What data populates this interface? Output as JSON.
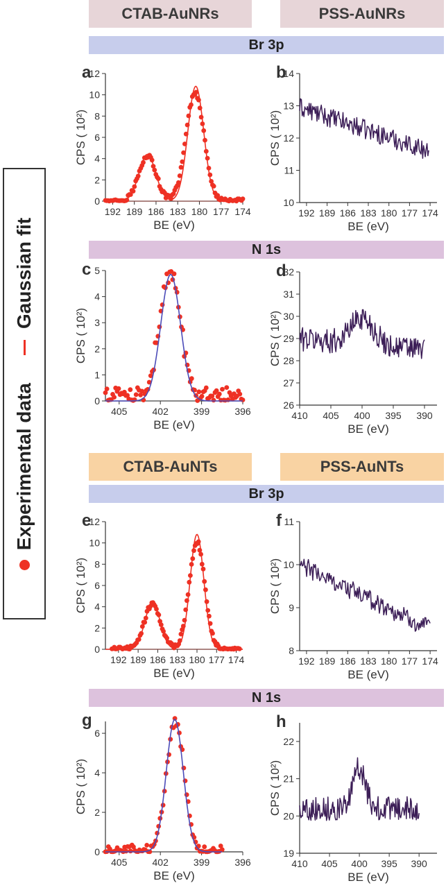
{
  "headers": {
    "ctab_aunrs": "CTAB-AuNRs",
    "pss_aunrs": "PSS-AuNRs",
    "br3p_1": "Br 3p",
    "n1s_1": "N 1s",
    "ctab_aunts": "CTAB-AuNTs",
    "pss_aunts": "PSS-AuNTs",
    "br3p_2": "Br 3p",
    "n1s_2": "N 1s"
  },
  "legend": {
    "experimental": "Experimental data",
    "fit": "Gaussian fit",
    "marker_color": "#ee3124",
    "fit_color": "#ee3124"
  },
  "colors": {
    "experimental": "#ee3124",
    "fit_red": "#ee3124",
    "fit_blue": "#4b4bb8",
    "spectrum": "#3c1e57",
    "baseline": "#8a5fa0",
    "axis": "#333333"
  },
  "chart_data": [
    {
      "id": "a",
      "panel_label": "a",
      "type": "scatter",
      "xlabel": "BE (eV)",
      "ylabel": "CPS ( 10²)",
      "xlim": [
        193,
        174
      ],
      "ylim": [
        0,
        12
      ],
      "xticks": [
        192,
        189,
        186,
        183,
        180,
        177,
        174
      ],
      "yticks": [
        0,
        2,
        4,
        6,
        8,
        10,
        12
      ],
      "series": [
        {
          "name": "Experimental data",
          "kind": "points",
          "model": [
            {
              "center": 187.2,
              "sigma": 1.2,
              "amp": 4.3
            },
            {
              "center": 180.6,
              "sigma": 1.25,
              "amp": 10.2
            }
          ],
          "x_range": [
            193,
            174
          ],
          "n": 110,
          "noise": 0.22,
          "baseline": 0.0
        },
        {
          "name": "Gaussian fit",
          "kind": "line",
          "color": "#ee3124",
          "model": [
            {
              "center": 187.2,
              "sigma": 1.15,
              "amp": 4.4
            },
            {
              "center": 180.5,
              "sigma": 1.1,
              "amp": 10.8
            }
          ],
          "x_range": [
            193,
            174
          ]
        }
      ]
    },
    {
      "id": "b",
      "panel_label": "b",
      "type": "line",
      "xlabel": "BE (eV)",
      "ylabel": "CPS ( 10²)",
      "xlim": [
        193,
        173
      ],
      "ylim": [
        10,
        14
      ],
      "xticks": [
        192,
        189,
        186,
        183,
        180,
        177,
        174
      ],
      "yticks": [
        10,
        11,
        12,
        13,
        14
      ],
      "series": [
        {
          "name": "Spectrum",
          "kind": "noisy",
          "color": "#3c1e57",
          "x_range": [
            193,
            174.2
          ],
          "n": 150,
          "trend": [
            12.95,
            11.6
          ],
          "noise": 0.3
        }
      ]
    },
    {
      "id": "c",
      "panel_label": "c",
      "type": "scatter",
      "xlabel": "BE (eV)",
      "ylabel": "CPS ( 10²)",
      "xlim": [
        406,
        396
      ],
      "ylim": [
        0,
        5
      ],
      "xticks": [
        405,
        402,
        399,
        396
      ],
      "yticks": [
        0,
        1,
        2,
        3,
        4,
        5
      ],
      "series": [
        {
          "name": "Experimental data",
          "kind": "points",
          "model": [
            {
              "center": 401.3,
              "sigma": 0.75,
              "amp": 4.8
            }
          ],
          "x_range": [
            406,
            396
          ],
          "n": 95,
          "noise": 0.3,
          "baseline": 0.15
        },
        {
          "name": "Gaussian fit",
          "kind": "line",
          "color": "#4b4bb8",
          "model": [
            {
              "center": 401.25,
              "sigma": 0.72,
              "amp": 4.85
            }
          ],
          "x_range": [
            406,
            396
          ]
        }
      ]
    },
    {
      "id": "d",
      "panel_label": "d",
      "type": "line",
      "xlabel": "BE (eV)",
      "ylabel": "CPS ( 10²)",
      "xlim": [
        410,
        388
      ],
      "ylim": [
        26,
        32
      ],
      "xticks": [
        410,
        405,
        400,
        395,
        390
      ],
      "yticks": [
        26,
        27,
        28,
        29,
        30,
        31,
        32
      ],
      "series": [
        {
          "name": "Spectrum",
          "kind": "noisy",
          "color": "#3c1e57",
          "x_range": [
            410,
            390
          ],
          "n": 170,
          "trend": [
            29.0,
            28.5
          ],
          "bump": {
            "center": 400,
            "sigma": 1.8,
            "amp": 1.2
          },
          "noise": 0.55
        }
      ]
    },
    {
      "id": "e",
      "panel_label": "e",
      "type": "scatter",
      "xlabel": "BE (eV)",
      "ylabel": "CPS ( 10²)",
      "xlim": [
        194,
        173
      ],
      "ylim": [
        0,
        12
      ],
      "xticks": [
        192,
        189,
        186,
        183,
        180,
        177,
        174
      ],
      "yticks": [
        0,
        2,
        4,
        6,
        8,
        10,
        12
      ],
      "series": [
        {
          "name": "Experimental data",
          "kind": "points",
          "model": [
            {
              "center": 186.8,
              "sigma": 1.25,
              "amp": 4.3
            },
            {
              "center": 180.0,
              "sigma": 1.2,
              "amp": 10.1
            }
          ],
          "x_range": [
            193,
            173.5
          ],
          "n": 110,
          "noise": 0.22,
          "baseline": 0.0
        },
        {
          "name": "Gaussian fit",
          "kind": "line",
          "color": "#ee3124",
          "model": [
            {
              "center": 186.8,
              "sigma": 1.15,
              "amp": 4.4
            },
            {
              "center": 180.0,
              "sigma": 1.05,
              "amp": 10.8
            }
          ],
          "x_range": [
            194,
            173
          ]
        }
      ]
    },
    {
      "id": "f",
      "panel_label": "f",
      "type": "line",
      "xlabel": "BE (eV)",
      "ylabel": "CPS ( 10²)",
      "xlim": [
        193,
        173
      ],
      "ylim": [
        8,
        11
      ],
      "xticks": [
        192,
        189,
        186,
        183,
        180,
        177,
        174
      ],
      "yticks": [
        8,
        9,
        10,
        11
      ],
      "series": [
        {
          "name": "Spectrum",
          "kind": "noisy",
          "color": "#3c1e57",
          "x_range": [
            193,
            174
          ],
          "n": 150,
          "trend": [
            10.0,
            8.5
          ],
          "noise": 0.22
        }
      ]
    },
    {
      "id": "g",
      "panel_label": "g",
      "type": "scatter",
      "xlabel": "BE (eV)",
      "ylabel": "CPS ( 10²)",
      "xlim": [
        406,
        396
      ],
      "ylim": [
        0,
        6.6
      ],
      "xticks": [
        405,
        402,
        399,
        396
      ],
      "yticks": [
        0,
        2,
        4,
        6
      ],
      "series": [
        {
          "name": "Experimental data",
          "kind": "points",
          "model": [
            {
              "center": 400.9,
              "sigma": 0.65,
              "amp": 6.6
            }
          ],
          "x_range": [
            406,
            397.5
          ],
          "n": 80,
          "noise": 0.25,
          "baseline": 0.05
        },
        {
          "name": "Gaussian fit",
          "kind": "line",
          "color": "#4b4bb8",
          "model": [
            {
              "center": 400.95,
              "sigma": 0.62,
              "amp": 6.7
            }
          ],
          "x_range": [
            406,
            397.5
          ]
        }
      ]
    },
    {
      "id": "h",
      "panel_label": "h",
      "type": "line",
      "xlabel": "BE (eV)",
      "ylabel": "CPS ( 10²)",
      "xlim": [
        410,
        387
      ],
      "ylim": [
        19,
        22.5
      ],
      "xticks": [
        410,
        405,
        400,
        395,
        390
      ],
      "yticks": [
        19,
        20,
        21,
        22
      ],
      "series": [
        {
          "name": "Spectrum",
          "kind": "noisy",
          "color": "#3c1e57",
          "x_range": [
            410,
            390
          ],
          "n": 170,
          "trend": [
            20.2,
            20.2
          ],
          "bump": {
            "center": 400,
            "sigma": 1.0,
            "amp": 1.1
          },
          "noise": 0.32
        }
      ]
    }
  ]
}
